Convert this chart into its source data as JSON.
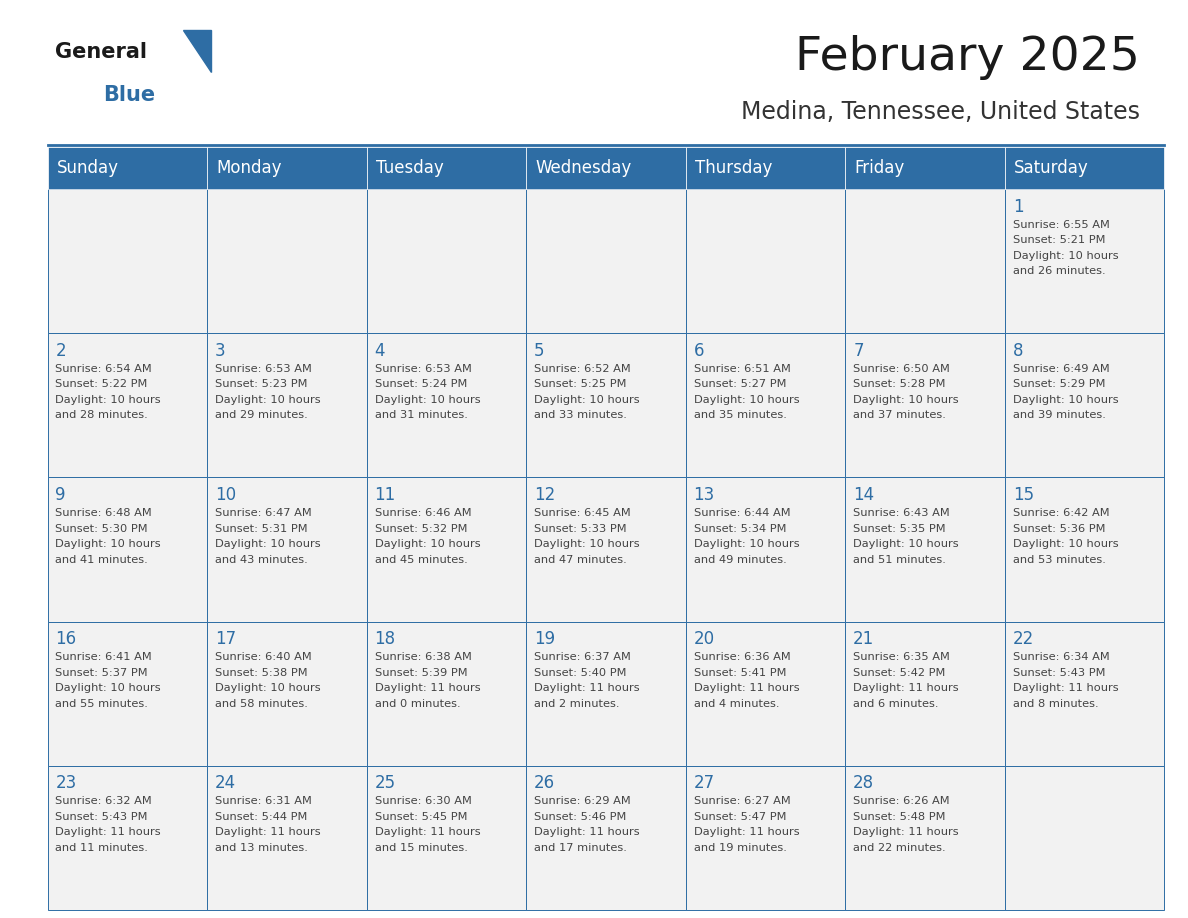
{
  "title": "February 2025",
  "subtitle": "Medina, Tennessee, United States",
  "header_color": "#2E6DA4",
  "header_text_color": "#FFFFFF",
  "cell_bg_color": "#F2F2F2",
  "border_color": "#2E6DA4",
  "border_color_light": "#AAAAAA",
  "day_number_color": "#2E6DA4",
  "text_color": "#444444",
  "days_of_week": [
    "Sunday",
    "Monday",
    "Tuesday",
    "Wednesday",
    "Thursday",
    "Friday",
    "Saturday"
  ],
  "calendar_data": [
    [
      null,
      null,
      null,
      null,
      null,
      null,
      {
        "day": 1,
        "sunrise": "6:55 AM",
        "sunset": "5:21 PM",
        "daylight": "10 hours\nand 26 minutes."
      }
    ],
    [
      {
        "day": 2,
        "sunrise": "6:54 AM",
        "sunset": "5:22 PM",
        "daylight": "10 hours\nand 28 minutes."
      },
      {
        "day": 3,
        "sunrise": "6:53 AM",
        "sunset": "5:23 PM",
        "daylight": "10 hours\nand 29 minutes."
      },
      {
        "day": 4,
        "sunrise": "6:53 AM",
        "sunset": "5:24 PM",
        "daylight": "10 hours\nand 31 minutes."
      },
      {
        "day": 5,
        "sunrise": "6:52 AM",
        "sunset": "5:25 PM",
        "daylight": "10 hours\nand 33 minutes."
      },
      {
        "day": 6,
        "sunrise": "6:51 AM",
        "sunset": "5:27 PM",
        "daylight": "10 hours\nand 35 minutes."
      },
      {
        "day": 7,
        "sunrise": "6:50 AM",
        "sunset": "5:28 PM",
        "daylight": "10 hours\nand 37 minutes."
      },
      {
        "day": 8,
        "sunrise": "6:49 AM",
        "sunset": "5:29 PM",
        "daylight": "10 hours\nand 39 minutes."
      }
    ],
    [
      {
        "day": 9,
        "sunrise": "6:48 AM",
        "sunset": "5:30 PM",
        "daylight": "10 hours\nand 41 minutes."
      },
      {
        "day": 10,
        "sunrise": "6:47 AM",
        "sunset": "5:31 PM",
        "daylight": "10 hours\nand 43 minutes."
      },
      {
        "day": 11,
        "sunrise": "6:46 AM",
        "sunset": "5:32 PM",
        "daylight": "10 hours\nand 45 minutes."
      },
      {
        "day": 12,
        "sunrise": "6:45 AM",
        "sunset": "5:33 PM",
        "daylight": "10 hours\nand 47 minutes."
      },
      {
        "day": 13,
        "sunrise": "6:44 AM",
        "sunset": "5:34 PM",
        "daylight": "10 hours\nand 49 minutes."
      },
      {
        "day": 14,
        "sunrise": "6:43 AM",
        "sunset": "5:35 PM",
        "daylight": "10 hours\nand 51 minutes."
      },
      {
        "day": 15,
        "sunrise": "6:42 AM",
        "sunset": "5:36 PM",
        "daylight": "10 hours\nand 53 minutes."
      }
    ],
    [
      {
        "day": 16,
        "sunrise": "6:41 AM",
        "sunset": "5:37 PM",
        "daylight": "10 hours\nand 55 minutes."
      },
      {
        "day": 17,
        "sunrise": "6:40 AM",
        "sunset": "5:38 PM",
        "daylight": "10 hours\nand 58 minutes."
      },
      {
        "day": 18,
        "sunrise": "6:38 AM",
        "sunset": "5:39 PM",
        "daylight": "11 hours\nand 0 minutes."
      },
      {
        "day": 19,
        "sunrise": "6:37 AM",
        "sunset": "5:40 PM",
        "daylight": "11 hours\nand 2 minutes."
      },
      {
        "day": 20,
        "sunrise": "6:36 AM",
        "sunset": "5:41 PM",
        "daylight": "11 hours\nand 4 minutes."
      },
      {
        "day": 21,
        "sunrise": "6:35 AM",
        "sunset": "5:42 PM",
        "daylight": "11 hours\nand 6 minutes."
      },
      {
        "day": 22,
        "sunrise": "6:34 AM",
        "sunset": "5:43 PM",
        "daylight": "11 hours\nand 8 minutes."
      }
    ],
    [
      {
        "day": 23,
        "sunrise": "6:32 AM",
        "sunset": "5:43 PM",
        "daylight": "11 hours\nand 11 minutes."
      },
      {
        "day": 24,
        "sunrise": "6:31 AM",
        "sunset": "5:44 PM",
        "daylight": "11 hours\nand 13 minutes."
      },
      {
        "day": 25,
        "sunrise": "6:30 AM",
        "sunset": "5:45 PM",
        "daylight": "11 hours\nand 15 minutes."
      },
      {
        "day": 26,
        "sunrise": "6:29 AM",
        "sunset": "5:46 PM",
        "daylight": "11 hours\nand 17 minutes."
      },
      {
        "day": 27,
        "sunrise": "6:27 AM",
        "sunset": "5:47 PM",
        "daylight": "11 hours\nand 19 minutes."
      },
      {
        "day": 28,
        "sunrise": "6:26 AM",
        "sunset": "5:48 PM",
        "daylight": "11 hours\nand 22 minutes."
      },
      null
    ]
  ],
  "title_fontsize": 34,
  "subtitle_fontsize": 17,
  "header_fontsize": 12,
  "day_number_fontsize": 12,
  "cell_text_fontsize": 8.2,
  "logo_general_fontsize": 15,
  "logo_blue_fontsize": 15
}
